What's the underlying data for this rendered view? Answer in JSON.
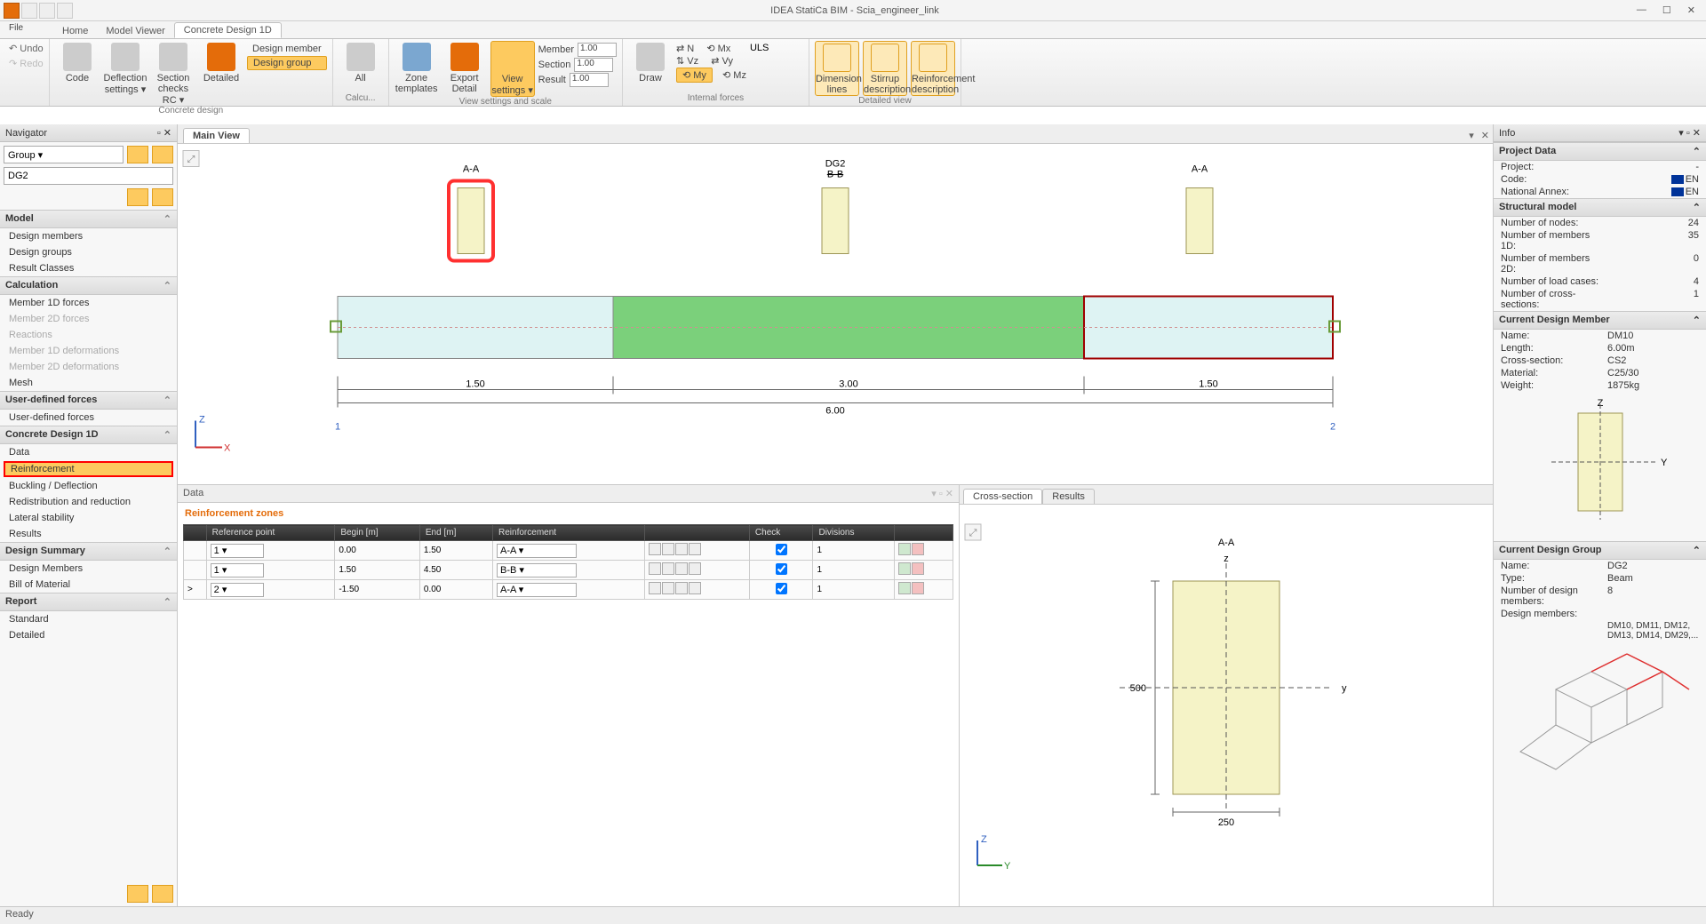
{
  "app": {
    "title": "IDEA StatiCa BIM - Scia_engineer_link"
  },
  "tabs": {
    "file": "File",
    "items": [
      "Home",
      "Model Viewer",
      "Concrete Design 1D"
    ],
    "active": 2
  },
  "ribbon": {
    "undo": "Undo",
    "redo": "Redo",
    "g_concrete": {
      "caption": "Concrete design",
      "code": "Code",
      "deflection": "Deflection\nsettings ▾",
      "section": "Section\nchecks RC ▾",
      "detailed": "Detailed",
      "dm": "Design member",
      "dg": "Design group"
    },
    "g_calc": {
      "caption": "Calcu...",
      "all": "All"
    },
    "g_view": {
      "caption": "View settings and scale",
      "zone": "Zone\ntemplates",
      "export": "Export\nDetail",
      "vs": "View\nsettings ▾",
      "member": "Member",
      "section": "Section",
      "result": "Result",
      "v1": "1.00",
      "v2": "1.00",
      "v3": "1.00"
    },
    "g_if": {
      "caption": "Internal forces",
      "draw": "Draw",
      "n": "N",
      "vz": "Vz",
      "my": "My",
      "mx": "Mx",
      "vy": "Vy",
      "mz": "Mz",
      "uls": "ULS"
    },
    "g_dv": {
      "caption": "Detailed view",
      "dim": "Dimension\nlines",
      "stirrup": "Stirrup\ndescription",
      "reinf": "Reinforcement\ndescription"
    }
  },
  "navigator": {
    "title": "Navigator",
    "group": "Group ▾",
    "dg": "DG2",
    "sections": {
      "model": {
        "title": "Model",
        "items": [
          "Design members",
          "Design groups",
          "Result Classes"
        ]
      },
      "calc": {
        "title": "Calculation",
        "items": [
          "Member 1D forces",
          "Member 2D forces",
          "Reactions",
          "Member 1D deformations",
          "Member 2D deformations",
          "Mesh"
        ],
        "disabled": [
          1,
          2,
          3,
          4
        ]
      },
      "udf": {
        "title": "User-defined forces",
        "items": [
          "User-defined forces"
        ]
      },
      "cd": {
        "title": "Concrete Design 1D",
        "items": [
          "Data",
          "Reinforcement",
          "Buckling / Deflection",
          "Redistribution and reduction",
          "Lateral stability",
          "Results"
        ],
        "selected": 1
      },
      "ds": {
        "title": "Design Summary",
        "items": [
          "Design Members",
          "Bill of Material"
        ]
      },
      "rp": {
        "title": "Report",
        "items": [
          "Standard",
          "Detailed"
        ]
      }
    }
  },
  "mainview": {
    "tab": "Main View",
    "labels": {
      "aa": "A-A",
      "dg2": "DG2",
      "bb": "B-B",
      "n1": "1",
      "n2": "2"
    },
    "dims": {
      "d1": "1.50",
      "d2": "3.00",
      "d3": "1.50",
      "total": "6.00"
    },
    "colors": {
      "sec_fill": "#f5f3c7",
      "sec_stroke": "#9d9656",
      "beam_end": "#def3f3",
      "beam_mid": "#7bd07b",
      "beam_sel": "#a00000",
      "hl": "#ff3030",
      "node": "#6a9c3a"
    }
  },
  "data": {
    "title": "Data",
    "subtitle": "Reinforcement zones",
    "cols": [
      "",
      "Reference point",
      "Begin [m]",
      "End [m]",
      "Reinforcement",
      "",
      "Check",
      "Divisions",
      ""
    ],
    "rows": [
      {
        "ref": "1",
        "begin": "0.00",
        "end": "1.50",
        "reinf": "A-A",
        "check": true,
        "div": "1"
      },
      {
        "ref": "1",
        "begin": "1.50",
        "end": "4.50",
        "reinf": "B-B",
        "check": true,
        "div": "1"
      },
      {
        "ref": "2",
        "begin": "-1.50",
        "end": "0.00",
        "reinf": "A-A",
        "check": true,
        "div": "1"
      }
    ]
  },
  "cross": {
    "tabs": [
      "Cross-section",
      "Results"
    ],
    "label": "A-A",
    "w": "250",
    "h": "500",
    "colors": {
      "fill": "#f5f3c7",
      "stroke": "#9d9656"
    }
  },
  "info": {
    "title": "Info",
    "project": {
      "title": "Project Data",
      "rows": [
        [
          "Project:",
          "-"
        ],
        [
          "Code:",
          "EN"
        ],
        [
          "National Annex:",
          "EN"
        ]
      ]
    },
    "struct": {
      "title": "Structural model",
      "rows": [
        [
          "Number of nodes:",
          "24"
        ],
        [
          "Number of members 1D:",
          "35"
        ],
        [
          "Number of members 2D:",
          "0"
        ],
        [
          "Number of load cases:",
          "4"
        ],
        [
          "Number of cross-sections:",
          "1"
        ]
      ]
    },
    "cdm": {
      "title": "Current Design Member",
      "rows": [
        [
          "Name:",
          "DM10"
        ],
        [
          "Length:",
          "6.00m"
        ],
        [
          "Cross-section:",
          "CS2"
        ],
        [
          "Material:",
          "C25/30"
        ],
        [
          "Weight:",
          "1875kg"
        ]
      ]
    },
    "cdg": {
      "title": "Current Design Group",
      "rows": [
        [
          "Name:",
          "DG2"
        ],
        [
          "Type:",
          "Beam"
        ],
        [
          "Number of design members:",
          "8"
        ],
        [
          "Design members:",
          ""
        ]
      ],
      "members": "DM10, DM11, DM12, DM13, DM14, DM29,..."
    }
  },
  "status": "Ready"
}
